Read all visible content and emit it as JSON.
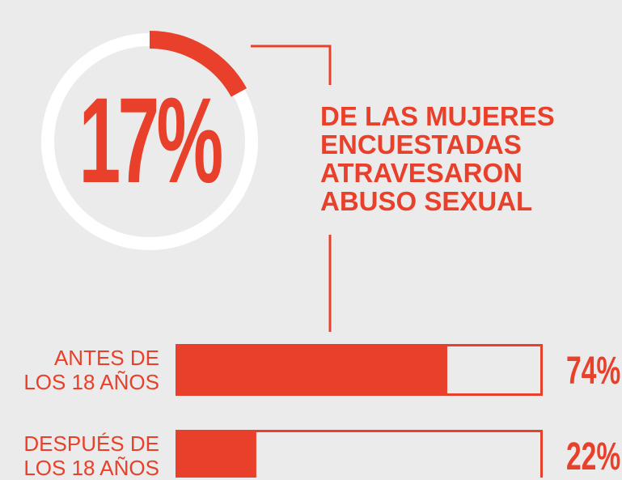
{
  "chart_data": [
    {
      "type": "donut",
      "values": [
        17
      ],
      "value_labels": [
        "17%"
      ],
      "color": "#e8402a",
      "track_color": "#ffffff",
      "text": "DE LAS MUJERES\nENCUESTADAS\nATRAVESARON\nABUSO SEXUAL"
    },
    {
      "type": "bar",
      "categories": [
        "ANTES DE\nLOS 18 AÑOS",
        "DESPUÉS DE\nLOS 18 AÑOS"
      ],
      "values": [
        74,
        22
      ],
      "value_labels": [
        "74%",
        "22%"
      ],
      "xlim": [
        0,
        100
      ],
      "color": "#e8402a"
    }
  ]
}
